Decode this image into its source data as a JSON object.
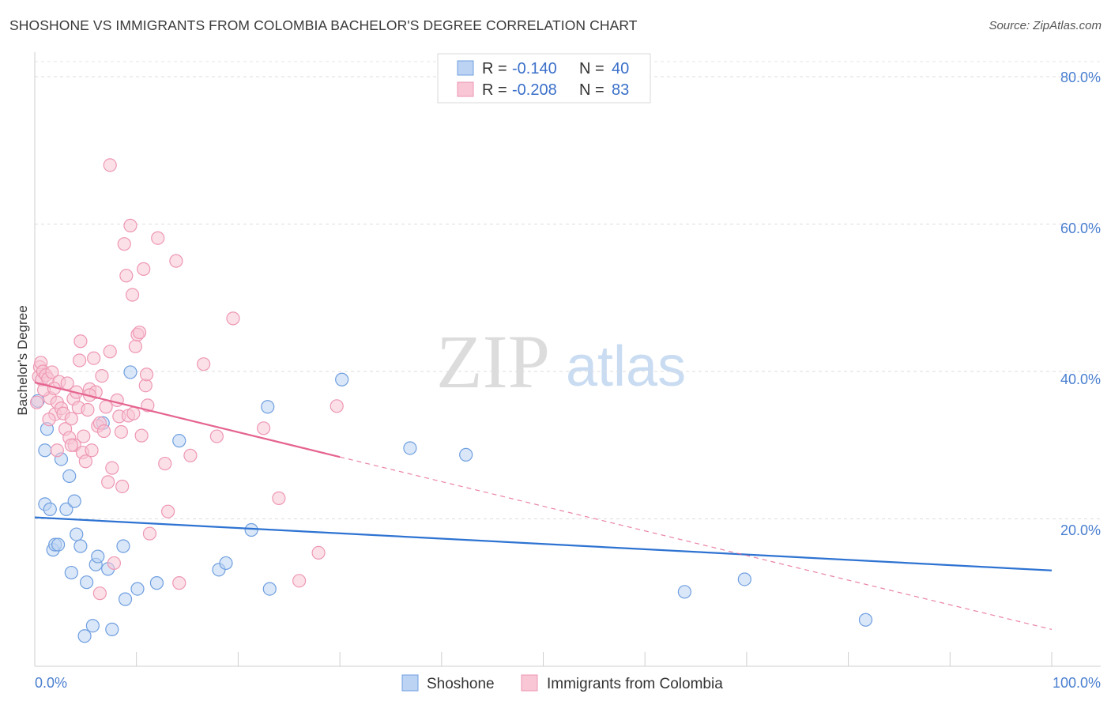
{
  "title": "SHOSHONE VS IMMIGRANTS FROM COLOMBIA BACHELOR'S DEGREE CORRELATION CHART",
  "source": "Source: ZipAtlas.com",
  "watermark": {
    "zip": "ZIP",
    "atlas": "atlas"
  },
  "chart_data": {
    "type": "scatter",
    "title": "SHOSHONE VS IMMIGRANTS FROM COLOMBIA BACHELOR'S DEGREE CORRELATION CHART",
    "xlabel": "",
    "ylabel": "Bachelor's Degree",
    "xlim": [
      0,
      100
    ],
    "ylim": [
      0,
      85
    ],
    "x_tick_labels": [
      "0.0%",
      "100.0%"
    ],
    "y_ticks": [
      20,
      40,
      60,
      80
    ],
    "y_tick_labels": [
      "20.0%",
      "40.0%",
      "60.0%",
      "80.0%"
    ],
    "grid": true,
    "legend": {
      "position": "top-center",
      "entries": [
        {
          "r_label": "R =",
          "r_value": "-0.140",
          "n_label": "N =",
          "n_value": "40"
        },
        {
          "r_label": "R =",
          "r_value": "-0.208",
          "n_label": "N =",
          "n_value": "83"
        }
      ]
    },
    "series": [
      {
        "name": "Shoshone",
        "color": "#6f9fe0",
        "fill": "#bcd3f3",
        "line_color": "#2e73d2",
        "trend": {
          "x": [
            0,
            100
          ],
          "y": [
            20.2,
            13.0
          ],
          "dashed_to": null
        },
        "points": [
          [
            0.3,
            36.0
          ],
          [
            1.0,
            29.3
          ],
          [
            1.0,
            22.0
          ],
          [
            1.2,
            32.2
          ],
          [
            1.5,
            21.3
          ],
          [
            1.8,
            15.8
          ],
          [
            2.0,
            16.5
          ],
          [
            2.3,
            16.5
          ],
          [
            2.6,
            28.1
          ],
          [
            3.1,
            21.3
          ],
          [
            3.4,
            25.8
          ],
          [
            3.6,
            12.7
          ],
          [
            3.9,
            22.4
          ],
          [
            4.1,
            17.9
          ],
          [
            4.5,
            16.3
          ],
          [
            4.9,
            4.1
          ],
          [
            5.1,
            11.4
          ],
          [
            5.7,
            5.5
          ],
          [
            6.0,
            13.8
          ],
          [
            6.2,
            14.9
          ],
          [
            6.7,
            33.0
          ],
          [
            7.2,
            13.2
          ],
          [
            7.6,
            5.0
          ],
          [
            8.7,
            16.3
          ],
          [
            8.9,
            9.1
          ],
          [
            9.4,
            39.9
          ],
          [
            10.1,
            10.5
          ],
          [
            12.0,
            11.3
          ],
          [
            14.2,
            30.6
          ],
          [
            18.1,
            13.1
          ],
          [
            18.8,
            14.0
          ],
          [
            21.3,
            18.5
          ],
          [
            22.9,
            35.2
          ],
          [
            23.1,
            10.5
          ],
          [
            30.2,
            38.9
          ],
          [
            36.9,
            29.6
          ],
          [
            42.4,
            28.7
          ],
          [
            63.9,
            10.1
          ],
          [
            69.8,
            11.8
          ],
          [
            81.7,
            6.3
          ]
        ]
      },
      {
        "name": "Immigrants from Colombia",
        "color": "#ee97b3",
        "fill": "#f8c6d5",
        "line_color": "#e5648f",
        "trend": {
          "x": [
            0,
            30
          ],
          "y": [
            38.5,
            28.4
          ],
          "dashed_to": [
            100,
            5.0
          ]
        },
        "points": [
          [
            0.2,
            35.8
          ],
          [
            0.4,
            39.3
          ],
          [
            0.5,
            40.6
          ],
          [
            0.6,
            41.2
          ],
          [
            0.7,
            38.9
          ],
          [
            0.8,
            40.0
          ],
          [
            1.1,
            39.5
          ],
          [
            1.3,
            39.0
          ],
          [
            1.5,
            36.4
          ],
          [
            1.7,
            39.9
          ],
          [
            2.0,
            34.2
          ],
          [
            2.2,
            35.8
          ],
          [
            2.4,
            38.6
          ],
          [
            2.6,
            35.0
          ],
          [
            2.8,
            34.3
          ],
          [
            3.0,
            32.2
          ],
          [
            3.2,
            38.4
          ],
          [
            3.4,
            31.0
          ],
          [
            3.6,
            33.6
          ],
          [
            3.8,
            36.3
          ],
          [
            3.9,
            30.0
          ],
          [
            4.1,
            37.2
          ],
          [
            4.3,
            35.1
          ],
          [
            4.4,
            41.5
          ],
          [
            4.5,
            44.1
          ],
          [
            4.7,
            29.0
          ],
          [
            4.8,
            31.2
          ],
          [
            5.0,
            27.8
          ],
          [
            5.2,
            34.8
          ],
          [
            5.4,
            37.6
          ],
          [
            5.6,
            29.3
          ],
          [
            5.8,
            41.8
          ],
          [
            6.0,
            37.2
          ],
          [
            6.2,
            32.6
          ],
          [
            6.4,
            33.0
          ],
          [
            6.6,
            39.4
          ],
          [
            6.8,
            31.9
          ],
          [
            7.0,
            35.2
          ],
          [
            7.4,
            42.7
          ],
          [
            7.6,
            26.9
          ],
          [
            7.8,
            14.0
          ],
          [
            8.1,
            36.1
          ],
          [
            8.3,
            33.9
          ],
          [
            8.5,
            31.8
          ],
          [
            8.6,
            24.4
          ],
          [
            8.8,
            57.3
          ],
          [
            9.0,
            53.0
          ],
          [
            9.2,
            34.0
          ],
          [
            9.4,
            59.8
          ],
          [
            9.6,
            50.4
          ],
          [
            9.7,
            34.3
          ],
          [
            9.9,
            43.4
          ],
          [
            10.1,
            45.0
          ],
          [
            10.3,
            45.3
          ],
          [
            10.5,
            31.3
          ],
          [
            10.7,
            53.9
          ],
          [
            10.9,
            38.1
          ],
          [
            11.0,
            39.6
          ],
          [
            11.1,
            35.4
          ],
          [
            11.3,
            18.0
          ],
          [
            12.1,
            58.1
          ],
          [
            12.8,
            27.5
          ],
          [
            13.1,
            21.0
          ],
          [
            13.9,
            55.0
          ],
          [
            14.2,
            11.3
          ],
          [
            15.3,
            28.6
          ],
          [
            16.6,
            41.0
          ],
          [
            17.9,
            31.2
          ],
          [
            19.5,
            47.2
          ],
          [
            22.5,
            32.3
          ],
          [
            24.0,
            22.8
          ],
          [
            26.0,
            11.6
          ],
          [
            27.9,
            15.4
          ],
          [
            29.7,
            35.3
          ],
          [
            7.4,
            68.0
          ],
          [
            7.2,
            25.0
          ],
          [
            6.4,
            9.9
          ],
          [
            5.4,
            36.8
          ],
          [
            3.6,
            30.0
          ],
          [
            2.2,
            29.3
          ],
          [
            1.4,
            33.5
          ],
          [
            0.9,
            37.5
          ],
          [
            1.9,
            37.7
          ]
        ]
      }
    ]
  },
  "bottom_legend": [
    {
      "label": "Shoshone",
      "color": "#bcd3f3",
      "border": "#6f9fe0"
    },
    {
      "label": "Immigrants from Colombia",
      "color": "#f8c6d5",
      "border": "#ee97b3"
    }
  ]
}
